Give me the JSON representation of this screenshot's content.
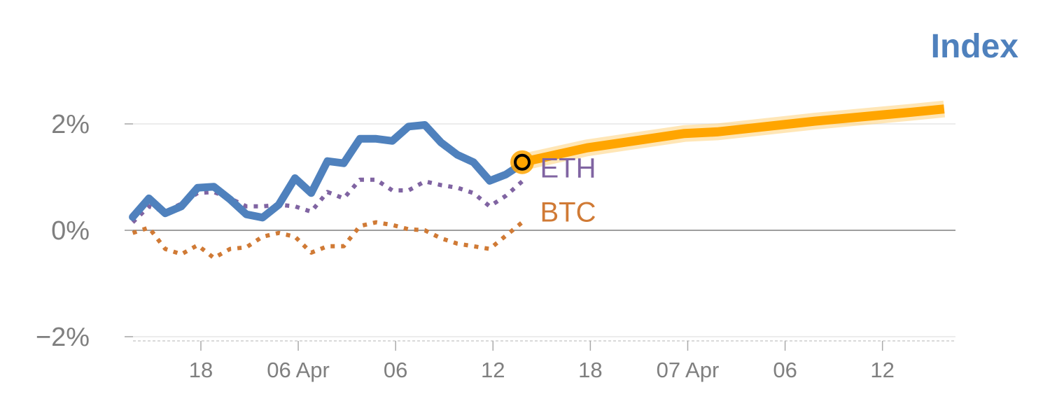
{
  "chart_data": {
    "type": "line",
    "title": "Index",
    "ylim": [
      -2,
      2
    ],
    "y_ticks": [
      {
        "value": 2,
        "label": "2%"
      },
      {
        "value": 0,
        "label": "0%"
      },
      {
        "value": -2,
        "label": "−2%"
      }
    ],
    "x_ticks": [
      {
        "x": 3,
        "label": "18"
      },
      {
        "x": 9,
        "label": "06 Apr"
      },
      {
        "x": 15,
        "label": "06"
      },
      {
        "x": 21,
        "label": "12"
      },
      {
        "x": 27,
        "label": "18"
      },
      {
        "x": 33,
        "label": "07 Apr"
      },
      {
        "x": 39,
        "label": "06"
      },
      {
        "x": 45,
        "label": "12"
      }
    ],
    "xlim": [
      -1.7,
      49.5
    ],
    "grid": true,
    "series": [
      {
        "name": "",
        "style": "solid",
        "color": "#4f81bd",
        "points": [
          [
            -1.2,
            0.25
          ],
          [
            -0.2,
            0.6
          ],
          [
            0.8,
            0.32
          ],
          [
            1.8,
            0.45
          ],
          [
            2.8,
            0.8
          ],
          [
            3.8,
            0.82
          ],
          [
            4.8,
            0.58
          ],
          [
            5.8,
            0.3
          ],
          [
            6.8,
            0.24
          ],
          [
            7.8,
            0.48
          ],
          [
            8.8,
            0.98
          ],
          [
            9.8,
            0.7
          ],
          [
            10.8,
            1.3
          ],
          [
            11.8,
            1.26
          ],
          [
            12.8,
            1.72
          ],
          [
            13.8,
            1.72
          ],
          [
            14.8,
            1.68
          ],
          [
            15.8,
            1.95
          ],
          [
            16.8,
            1.98
          ],
          [
            17.8,
            1.65
          ],
          [
            18.8,
            1.42
          ],
          [
            19.8,
            1.28
          ],
          [
            20.8,
            0.93
          ],
          [
            21.8,
            1.05
          ],
          [
            22.8,
            1.25
          ]
        ]
      },
      {
        "name": "ETH",
        "style": "dotted",
        "color": "#8064a2",
        "points": [
          [
            -1.2,
            0.15
          ],
          [
            -0.2,
            0.45
          ],
          [
            0.8,
            0.35
          ],
          [
            1.8,
            0.5
          ],
          [
            2.8,
            0.7
          ],
          [
            3.8,
            0.72
          ],
          [
            4.8,
            0.6
          ],
          [
            5.8,
            0.45
          ],
          [
            6.8,
            0.45
          ],
          [
            7.8,
            0.48
          ],
          [
            8.8,
            0.45
          ],
          [
            9.8,
            0.35
          ],
          [
            10.8,
            0.72
          ],
          [
            11.8,
            0.6
          ],
          [
            12.8,
            0.95
          ],
          [
            13.8,
            0.95
          ],
          [
            14.8,
            0.75
          ],
          [
            15.8,
            0.75
          ],
          [
            16.8,
            0.92
          ],
          [
            17.8,
            0.85
          ],
          [
            18.8,
            0.8
          ],
          [
            19.8,
            0.7
          ],
          [
            20.8,
            0.45
          ],
          [
            21.8,
            0.65
          ],
          [
            22.8,
            0.92
          ]
        ]
      },
      {
        "name": "BTC",
        "style": "dotted",
        "color": "#d07a35",
        "points": [
          [
            -1.2,
            -0.05
          ],
          [
            -0.2,
            0.05
          ],
          [
            0.8,
            -0.35
          ],
          [
            1.8,
            -0.45
          ],
          [
            2.8,
            -0.28
          ],
          [
            3.8,
            -0.52
          ],
          [
            4.8,
            -0.35
          ],
          [
            5.8,
            -0.32
          ],
          [
            6.8,
            -0.12
          ],
          [
            7.8,
            -0.05
          ],
          [
            8.8,
            -0.12
          ],
          [
            9.8,
            -0.42
          ],
          [
            10.8,
            -0.3
          ],
          [
            11.8,
            -0.3
          ],
          [
            12.8,
            0.08
          ],
          [
            13.8,
            0.15
          ],
          [
            14.8,
            0.1
          ],
          [
            15.8,
            0.02
          ],
          [
            16.8,
            0.0
          ],
          [
            17.8,
            -0.15
          ],
          [
            18.8,
            -0.25
          ],
          [
            19.8,
            -0.3
          ],
          [
            20.8,
            -0.35
          ],
          [
            21.8,
            -0.1
          ],
          [
            22.8,
            0.15
          ]
        ]
      },
      {
        "name": "",
        "style": "forecast",
        "color": "#ffa500",
        "points": [
          [
            22.8,
            1.28
          ],
          [
            26.8,
            1.55
          ],
          [
            32.8,
            1.82
          ],
          [
            34.8,
            1.85
          ],
          [
            40.8,
            2.05
          ],
          [
            46.8,
            2.22
          ],
          [
            48.8,
            2.28
          ]
        ]
      }
    ],
    "marker": {
      "x": 22.8,
      "y": 1.28,
      "fill": "#ffa500",
      "stroke": "#000000"
    },
    "series_labels": [
      {
        "text": "ETH",
        "x": 23.9,
        "y": 1.18,
        "color": "#8064a2"
      },
      {
        "text": "BTC",
        "x": 23.9,
        "y": 0.35,
        "color": "#d07a35"
      }
    ],
    "colors": {
      "title": "#4f81bd",
      "tick_text": "#7f7f7f",
      "grid": "#e5e5e5",
      "zero_line": "#7f7f7f",
      "axis": "#d9d9d9"
    }
  }
}
